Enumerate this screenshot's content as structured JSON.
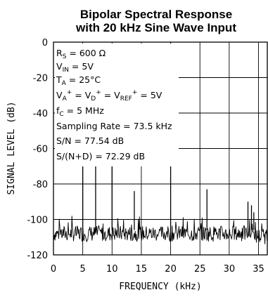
{
  "chart_data": {
    "type": "line",
    "title": [
      "Bipolar Spectral Response",
      "with 20 kHz Sine Wave Input"
    ],
    "xlabel": "FREQUENCY (kHz)",
    "ylabel": "SIGNAL LEVEL (dB)",
    "xlim": [
      0,
      36.5
    ],
    "ylim": [
      -120,
      0
    ],
    "xticks": [
      0,
      5,
      10,
      15,
      20,
      25,
      30,
      35
    ],
    "yticks": [
      0,
      -20,
      -40,
      -60,
      -80,
      -100,
      -120
    ],
    "grid": true,
    "noise_floor_db": -108,
    "spurs": [
      {
        "x": 5.0,
        "y": -69
      },
      {
        "x": 7.2,
        "y": -67
      },
      {
        "x": 10.0,
        "y": -67
      },
      {
        "x": 13.8,
        "y": -84
      },
      {
        "x": 20.0,
        "y": 0
      },
      {
        "x": 26.2,
        "y": -83
      },
      {
        "x": 33.2,
        "y": -90
      },
      {
        "x": 33.8,
        "y": -92
      },
      {
        "x": 34.2,
        "y": -96
      }
    ],
    "annotations": [
      "R_S = 600 Ω",
      "V_IN = 5V",
      "T_A = 25°C",
      "V_A+ = V_D+ = V_REF+ = 5V",
      "f_C = 5 MHz",
      "Sampling Rate = 73.5 kHz",
      "S/N = 77.54 dB",
      "S/(N+D) = 72.29 dB"
    ]
  }
}
